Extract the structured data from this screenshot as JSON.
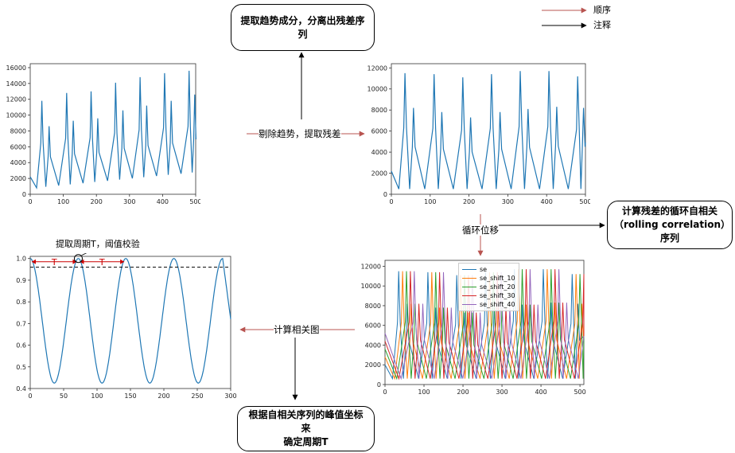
{
  "boxes": {
    "extract_trend": "提取趋势成分，分离出残差序列",
    "rolling_corr_line1": "计算残差的循环自相关",
    "rolling_corr_line2": "（rolling correlation）序列",
    "peak_line1": "根据自相关序列的峰值坐标来",
    "peak_line2": "确定周期T"
  },
  "labels": {
    "remove_trend": "剔除趋势，提取残差",
    "cyclic_shift": "循环位移",
    "compute_corr": "计算相关图",
    "extract_period": "提取周期T，阈值校验",
    "period_T": "T"
  },
  "legend_key": {
    "order": "顺序",
    "note": "注释",
    "order_color": "#b85450",
    "note_color": "#000000"
  },
  "plot_legend": [
    "se",
    "se_shift_10",
    "se_shift_20",
    "se_shift_30",
    "se_shift_40"
  ],
  "chart_data": [
    {
      "type": "line",
      "id": "original",
      "x_ticks": [
        0,
        100,
        200,
        300,
        400,
        500
      ],
      "y_ticks": [
        0,
        2000,
        4000,
        6000,
        8000,
        10000,
        12000,
        14000,
        16000
      ],
      "xlim": [
        0,
        500
      ],
      "ylim": [
        0,
        16500
      ],
      "peaks": [
        {
          "x": 35,
          "y": 11800
        },
        {
          "x": 57,
          "y": 8600
        },
        {
          "x": 110,
          "y": 12800
        },
        {
          "x": 130,
          "y": 9300
        },
        {
          "x": 184,
          "y": 13000
        },
        {
          "x": 204,
          "y": 9600
        },
        {
          "x": 258,
          "y": 14100
        },
        {
          "x": 280,
          "y": 10600
        },
        {
          "x": 332,
          "y": 14800
        },
        {
          "x": 352,
          "y": 11200
        },
        {
          "x": 406,
          "y": 15300
        },
        {
          "x": 426,
          "y": 11800
        },
        {
          "x": 480,
          "y": 15600
        },
        {
          "x": 497,
          "y": 12600
        }
      ],
      "color": "#1f77b4"
    },
    {
      "type": "line",
      "id": "residual",
      "x_ticks": [
        0,
        100,
        200,
        300,
        400,
        500
      ],
      "y_ticks": [
        0,
        2000,
        4000,
        6000,
        8000,
        10000,
        12000
      ],
      "xlim": [
        0,
        500
      ],
      "ylim": [
        0,
        12400
      ],
      "peaks": [
        {
          "x": 35,
          "y": 11500
        },
        {
          "x": 57,
          "y": 8200
        },
        {
          "x": 110,
          "y": 11400
        },
        {
          "x": 130,
          "y": 7800
        },
        {
          "x": 184,
          "y": 11100
        },
        {
          "x": 204,
          "y": 7300
        },
        {
          "x": 258,
          "y": 11400
        },
        {
          "x": 280,
          "y": 7800
        },
        {
          "x": 332,
          "y": 11700
        },
        {
          "x": 352,
          "y": 8100
        },
        {
          "x": 406,
          "y": 11700
        },
        {
          "x": 426,
          "y": 8300
        },
        {
          "x": 480,
          "y": 11200
        },
        {
          "x": 495,
          "y": 8200
        }
      ],
      "color": "#1f77b4"
    },
    {
      "type": "line",
      "id": "shifted",
      "x_ticks": [
        0,
        100,
        200,
        300,
        400,
        500
      ],
      "y_ticks": [
        0,
        2000,
        4000,
        6000,
        8000,
        10000,
        12000
      ],
      "xlim": [
        0,
        510
      ],
      "ylim": [
        0,
        12600
      ],
      "series": [
        {
          "name": "se",
          "shift": 0,
          "color": "#1f77b4"
        },
        {
          "name": "se_shift_10",
          "shift": 10,
          "color": "#ff7f0e"
        },
        {
          "name": "se_shift_20",
          "shift": 20,
          "color": "#2ca02c"
        },
        {
          "name": "se_shift_30",
          "shift": 30,
          "color": "#d62728"
        },
        {
          "name": "se_shift_40",
          "shift": 40,
          "color": "#9467bd"
        }
      ]
    },
    {
      "type": "line",
      "id": "autocorr",
      "x_ticks": [
        0,
        50,
        100,
        150,
        200,
        250,
        300
      ],
      "y_ticks": [
        0.4,
        0.5,
        0.6,
        0.7,
        0.8,
        0.9,
        1.0
      ],
      "xlim": [
        0,
        300
      ],
      "ylim": [
        0.4,
        1.01
      ],
      "peaks_x": [
        0,
        72,
        143,
        215,
        288
      ],
      "peak_y": 1.0,
      "trough_y": 0.425,
      "threshold": 0.96,
      "end": {
        "x": 300,
        "y": 0.72
      },
      "color": "#1f77b4"
    }
  ]
}
